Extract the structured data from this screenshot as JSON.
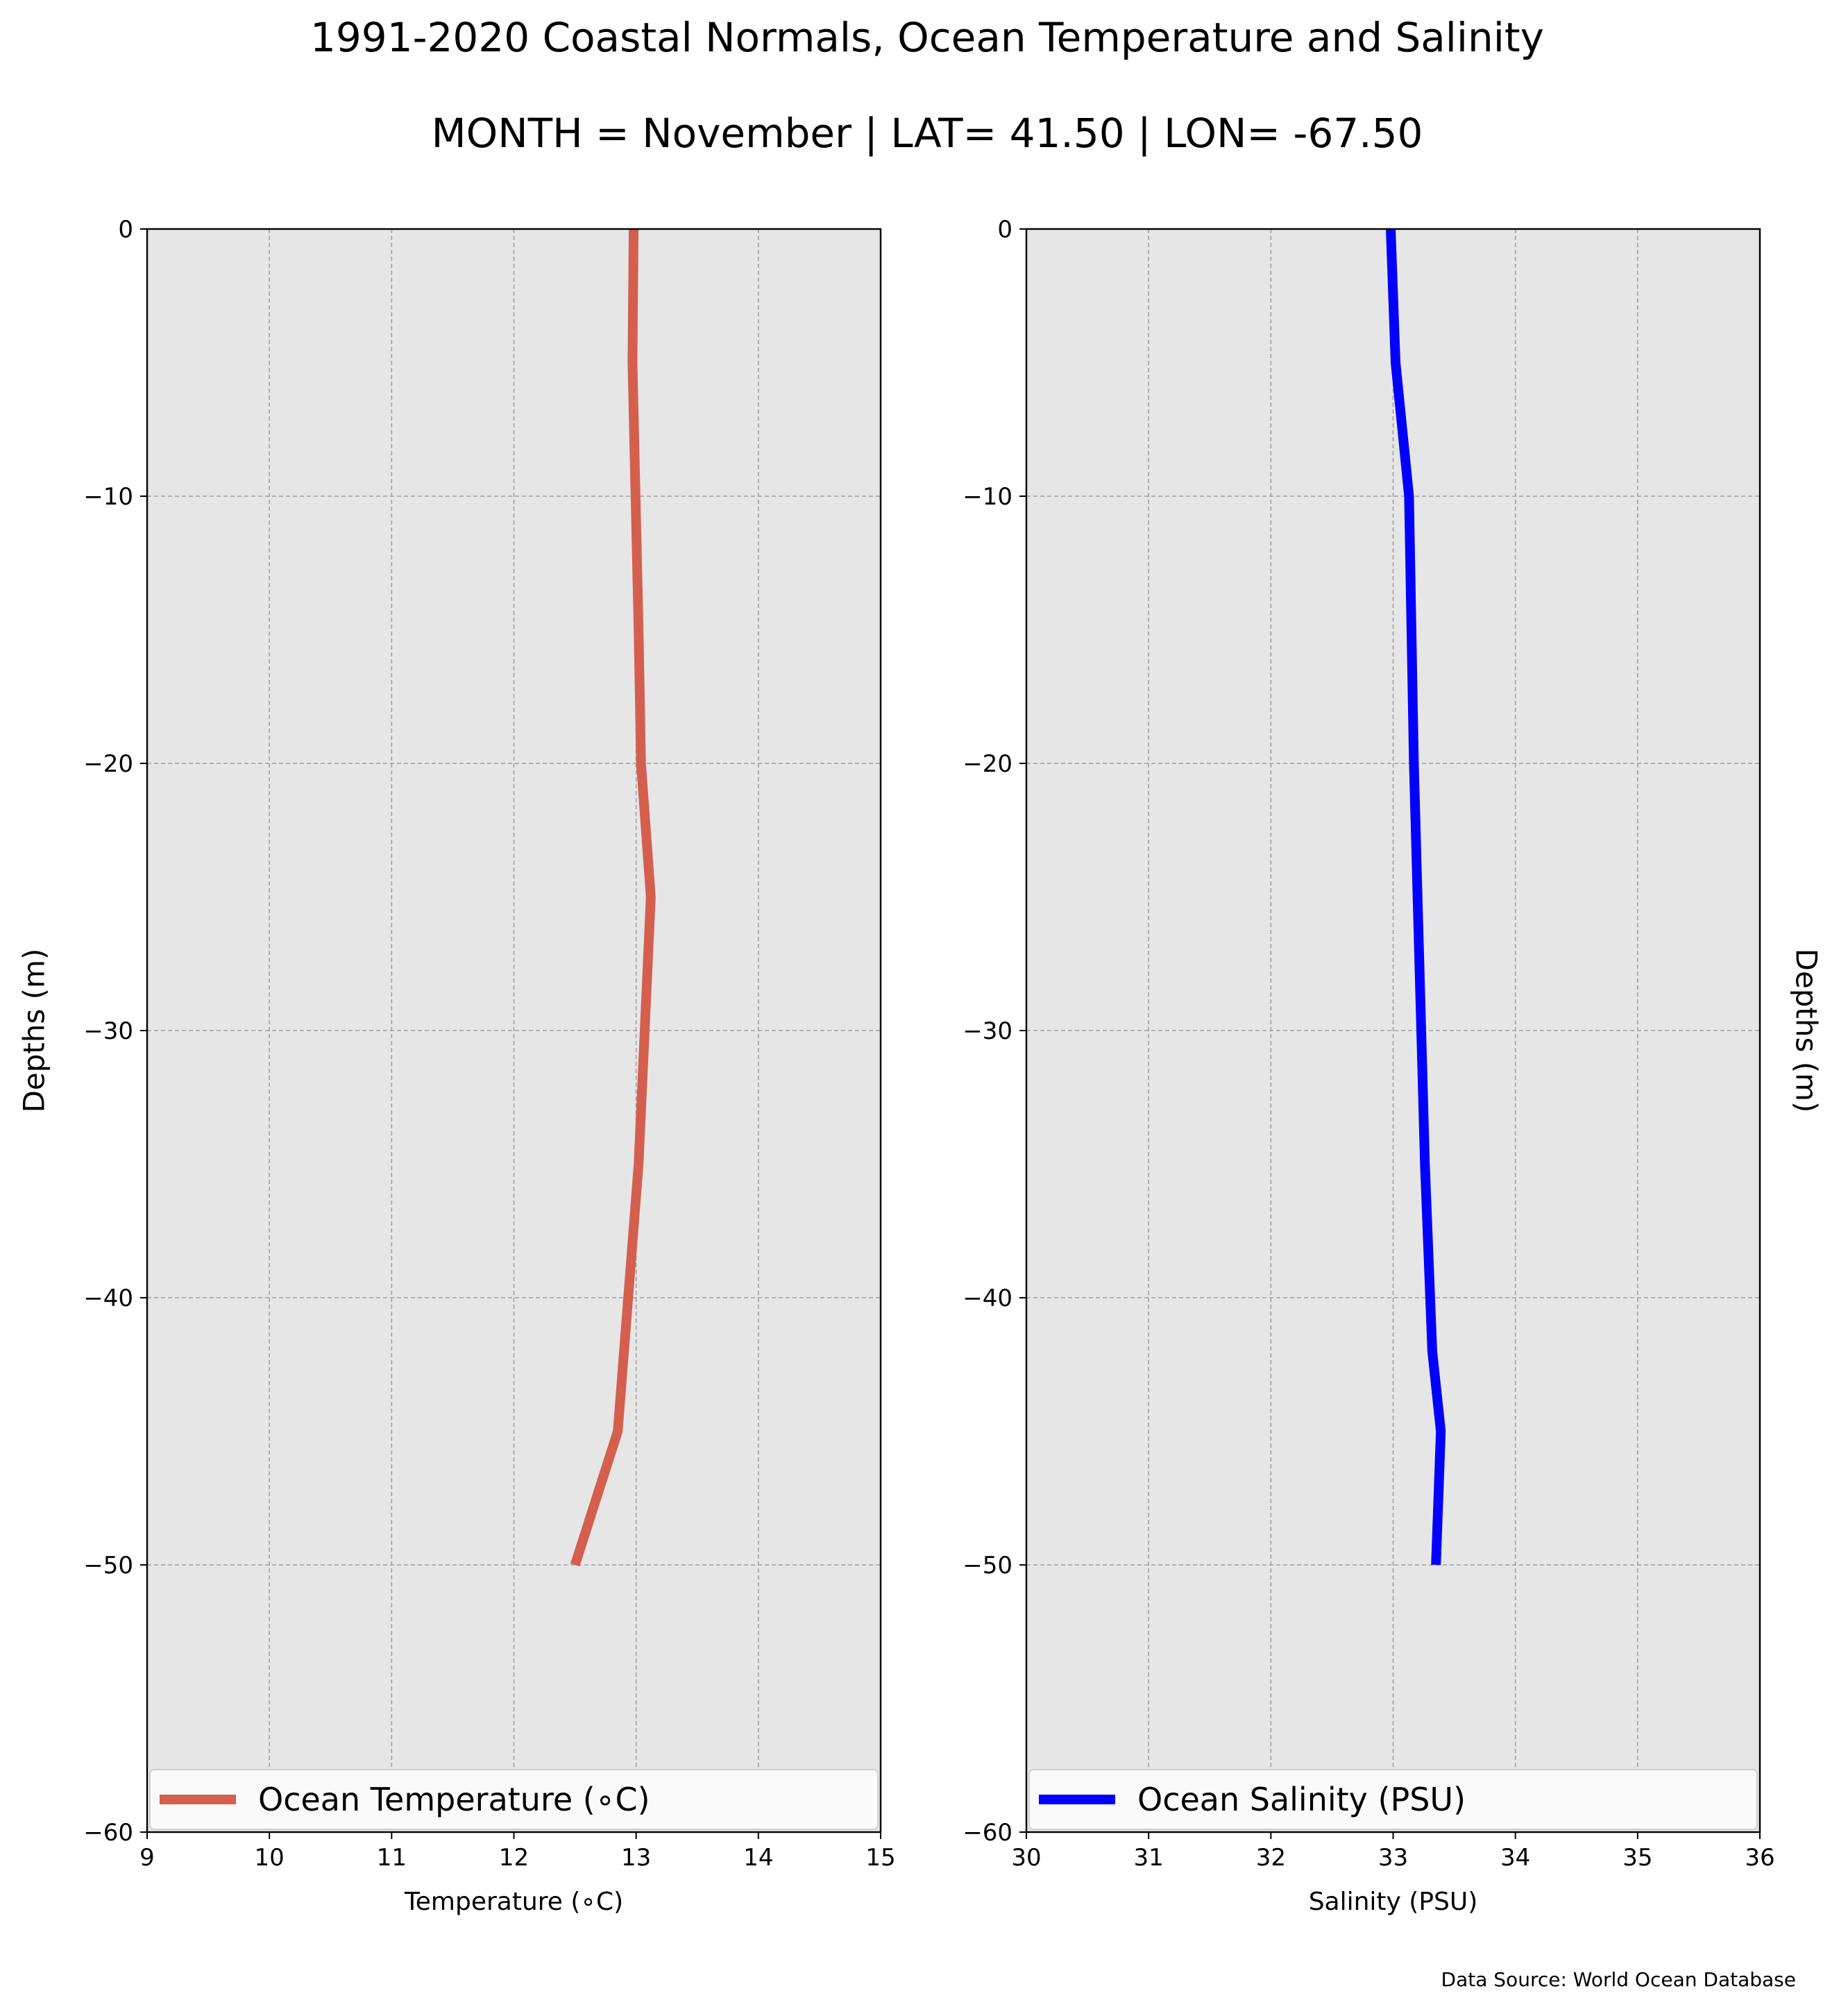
{
  "figure": {
    "title": "1991-2020 Coastal Normals, Ocean Temperature and Salinity",
    "subtitle": "MONTH = November | LAT= 41.50 | LON= -67.50",
    "source": "Data Source: World Ocean Database",
    "background": "#ffffff"
  },
  "chart_data": [
    {
      "type": "line",
      "xlabel": "Temperature (∘C)",
      "ylabel": "Depths (m)",
      "xlim": [
        9,
        15
      ],
      "ylim": [
        -60,
        0
      ],
      "xticks": [
        9,
        10,
        11,
        12,
        13,
        14,
        15
      ],
      "yticks": [
        0,
        -10,
        -20,
        -30,
        -40,
        -50,
        -60
      ],
      "x_tick_labels": [
        "9",
        "10",
        "11",
        "12",
        "13",
        "14",
        "15"
      ],
      "y_tick_labels": [
        "0",
        "−10",
        "−20",
        "−30",
        "−40",
        "−50",
        "−60"
      ],
      "grid": true,
      "legend_position": "lower center",
      "axes_facecolor": "#e6e6e6",
      "series": [
        {
          "name": "Ocean Temperature (∘C)",
          "color": "#d45f4f",
          "x": [
            12.98,
            12.97,
            13.02,
            13.04,
            13.12,
            13.02,
            12.85,
            12.5
          ],
          "y": [
            0,
            -5,
            -15,
            -20,
            -25,
            -35,
            -45,
            -50
          ]
        }
      ]
    },
    {
      "type": "line",
      "xlabel": "Salinity (PSU)",
      "ylabel": "Depths (m)",
      "xlim": [
        30,
        36
      ],
      "ylim": [
        -60,
        0
      ],
      "xticks": [
        30,
        31,
        32,
        33,
        34,
        35,
        36
      ],
      "yticks": [
        0,
        -10,
        -20,
        -30,
        -40,
        -50,
        -60
      ],
      "x_tick_labels": [
        "30",
        "31",
        "32",
        "33",
        "34",
        "35",
        "36"
      ],
      "y_tick_labels": [
        "0",
        "−10",
        "−20",
        "−30",
        "−40",
        "−50",
        "−60"
      ],
      "grid": true,
      "legend_position": "lower center",
      "axes_facecolor": "#e6e6e6",
      "series": [
        {
          "name": "Ocean Salinity (PSU)",
          "color": "#0000ff",
          "x": [
            32.98,
            33.02,
            33.13,
            33.17,
            33.2,
            33.26,
            33.32,
            33.39,
            33.35
          ],
          "y": [
            0,
            -5,
            -10,
            -20,
            -25,
            -35,
            -42,
            -45,
            -50
          ]
        }
      ]
    }
  ]
}
